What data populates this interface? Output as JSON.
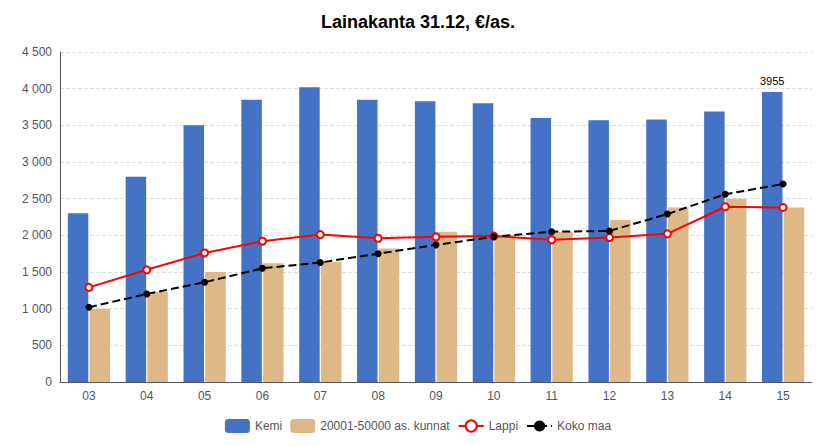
{
  "chart_data": {
    "type": "bar",
    "title": "Lainakanta 31.12, €/as.",
    "categories": [
      "03",
      "04",
      "05",
      "06",
      "07",
      "08",
      "09",
      "10",
      "11",
      "12",
      "13",
      "14",
      "15"
    ],
    "series": [
      {
        "name": "Kemi",
        "type": "bar",
        "color": "#4472C4",
        "values": [
          2300,
          2800,
          3500,
          3850,
          4020,
          3850,
          3830,
          3800,
          3600,
          3570,
          3580,
          3690,
          3955
        ]
      },
      {
        "name": "20001-50000 as. kunnat",
        "type": "bar",
        "color": "#DEB887",
        "values": [
          1000,
          1230,
          1500,
          1620,
          1640,
          1820,
          2050,
          2000,
          2050,
          2210,
          2380,
          2500,
          2380
        ]
      },
      {
        "name": "Lappi",
        "type": "line",
        "color": "#FF0000",
        "marker": "hollow_circle",
        "line_style": "solid",
        "values": [
          1290,
          1530,
          1760,
          1920,
          2010,
          1960,
          1980,
          1990,
          1940,
          1970,
          2020,
          2390,
          2380
        ]
      },
      {
        "name": "Koko maa",
        "type": "line",
        "color": "#000000",
        "marker": "circle",
        "line_style": "dashed",
        "values": [
          1020,
          1200,
          1360,
          1550,
          1630,
          1750,
          1870,
          1980,
          2050,
          2060,
          2290,
          2560,
          2700
        ]
      }
    ],
    "annotations": [
      {
        "text": "3955",
        "series": "Kemi",
        "x": "15",
        "y": 3955
      }
    ],
    "ylim": [
      0,
      4500
    ],
    "yticks": [
      0,
      500,
      {
        "value": 1000,
        "label": "1 000"
      },
      {
        "value": 1500,
        "label": "1 500"
      },
      {
        "value": 2000,
        "label": "2 000"
      },
      {
        "value": 2500,
        "label": "2 500"
      },
      {
        "value": 3000,
        "label": "3 000"
      },
      {
        "value": 3500,
        "label": "3 500"
      },
      {
        "value": 4000,
        "label": "4 000"
      },
      {
        "value": 4500,
        "label": "4 500"
      }
    ],
    "grid": true,
    "legend": "bottom"
  }
}
